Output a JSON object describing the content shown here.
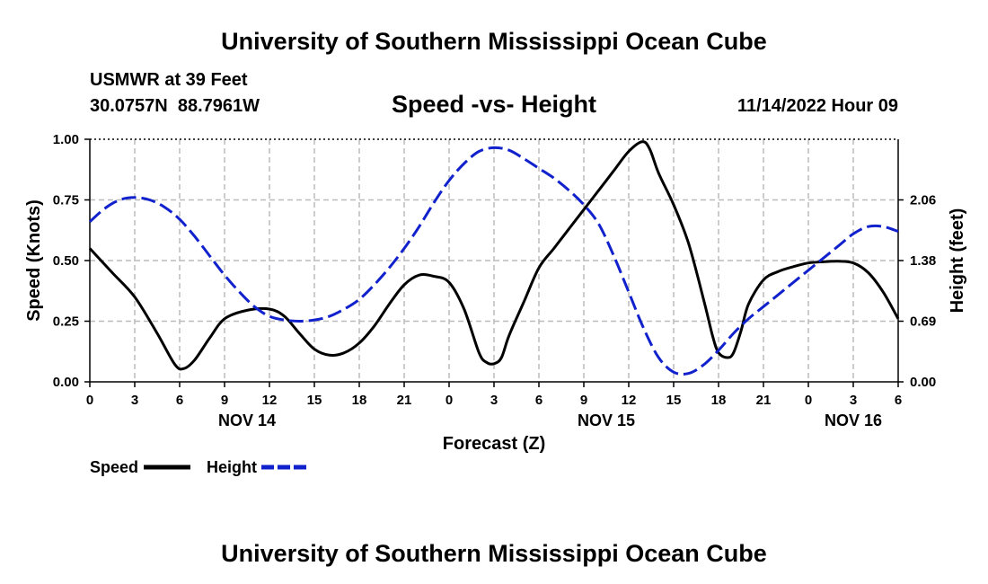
{
  "title": "University of Southern Mississippi Ocean Cube",
  "footer_title": "University of Southern Mississippi Ocean Cube",
  "station": {
    "name_line": "USMWR at 39 Feet",
    "coords_line": "30.0757N  88.7961W"
  },
  "run_label": "11/14/2022 Hour 09",
  "chart_data": {
    "type": "line",
    "title": "Speed -vs- Height",
    "xlabel": "Forecast (Z)",
    "ylabel": "Speed (Knots)",
    "y2label": "Height (feet)",
    "xlim": [
      0,
      54
    ],
    "ylim": [
      0,
      1
    ],
    "x_ticks": [
      0,
      3,
      6,
      9,
      12,
      15,
      18,
      21,
      24,
      27,
      30,
      33,
      36,
      39,
      42,
      45,
      48,
      51,
      54
    ],
    "x_tick_labels": [
      "0",
      "3",
      "6",
      "9",
      "12",
      "15",
      "18",
      "21",
      "0",
      "3",
      "6",
      "9",
      "12",
      "15",
      "18",
      "21",
      "0",
      "3",
      "6"
    ],
    "y_ticks": [
      0,
      0.25,
      0.5,
      0.75,
      1.0
    ],
    "y_tick_labels": [
      "0.00",
      "0.25",
      "0.50",
      "0.75",
      "1.00"
    ],
    "y2_ticks": [
      0,
      0.25,
      0.5,
      0.75
    ],
    "y2_tick_labels": [
      "0.00",
      "0.69",
      "1.38",
      "2.06"
    ],
    "dates": [
      {
        "x": 10.5,
        "label": "NOV 14"
      },
      {
        "x": 34.5,
        "label": "NOV 15"
      },
      {
        "x": 51,
        "label": "NOV 16"
      }
    ],
    "series": [
      {
        "name": "Speed",
        "color": "#000000",
        "dash": "solid",
        "x": [
          0,
          1.5,
          3,
          4.5,
          5.7,
          6.3,
          7,
          8,
          9,
          10.5,
          12,
          13,
          14,
          15,
          16,
          17,
          18,
          19,
          20,
          21,
          22,
          23,
          24,
          25,
          26,
          26.5,
          27,
          27.5,
          28,
          29,
          30,
          31,
          32,
          33,
          34,
          35,
          36,
          36.9,
          37.4,
          38,
          39,
          40,
          41,
          41.6,
          42,
          42.6,
          43,
          43.5,
          44,
          45,
          46,
          47,
          48,
          49,
          50,
          51,
          52,
          53,
          54
        ],
        "values": [
          0.55,
          0.45,
          0.35,
          0.2,
          0.07,
          0.055,
          0.09,
          0.18,
          0.26,
          0.295,
          0.3,
          0.27,
          0.2,
          0.135,
          0.11,
          0.12,
          0.16,
          0.23,
          0.32,
          0.4,
          0.44,
          0.435,
          0.41,
          0.3,
          0.12,
          0.08,
          0.075,
          0.1,
          0.19,
          0.33,
          0.47,
          0.55,
          0.63,
          0.71,
          0.79,
          0.87,
          0.95,
          0.99,
          0.96,
          0.86,
          0.73,
          0.57,
          0.34,
          0.19,
          0.12,
          0.1,
          0.12,
          0.21,
          0.32,
          0.42,
          0.455,
          0.475,
          0.49,
          0.495,
          0.497,
          0.49,
          0.45,
          0.37,
          0.26
        ]
      },
      {
        "name": "Height",
        "color": "#1122cc",
        "dash": "dashed",
        "x": [
          0,
          1,
          2,
          3,
          4,
          5,
          6,
          7,
          8,
          9,
          10,
          11,
          12,
          13,
          14,
          15,
          16,
          17,
          18,
          19,
          20,
          21,
          22,
          23,
          24,
          25,
          26,
          27,
          28,
          29,
          30,
          31,
          32,
          33,
          34,
          35,
          36,
          37,
          38,
          39,
          40,
          41,
          42,
          43,
          44,
          45,
          46,
          47,
          48,
          49,
          50,
          51,
          52,
          53,
          54
        ],
        "values": [
          0.66,
          0.715,
          0.75,
          0.76,
          0.75,
          0.72,
          0.67,
          0.6,
          0.52,
          0.44,
          0.37,
          0.31,
          0.27,
          0.255,
          0.25,
          0.255,
          0.27,
          0.3,
          0.34,
          0.4,
          0.47,
          0.55,
          0.64,
          0.74,
          0.83,
          0.9,
          0.95,
          0.965,
          0.955,
          0.92,
          0.88,
          0.84,
          0.79,
          0.73,
          0.65,
          0.52,
          0.37,
          0.22,
          0.1,
          0.04,
          0.035,
          0.07,
          0.13,
          0.2,
          0.26,
          0.31,
          0.36,
          0.41,
          0.46,
          0.51,
          0.56,
          0.61,
          0.64,
          0.64,
          0.62
        ]
      }
    ],
    "legend": "bottom-left",
    "grid": true
  },
  "legend": {
    "speed_label": "Speed",
    "height_label": "Height"
  }
}
